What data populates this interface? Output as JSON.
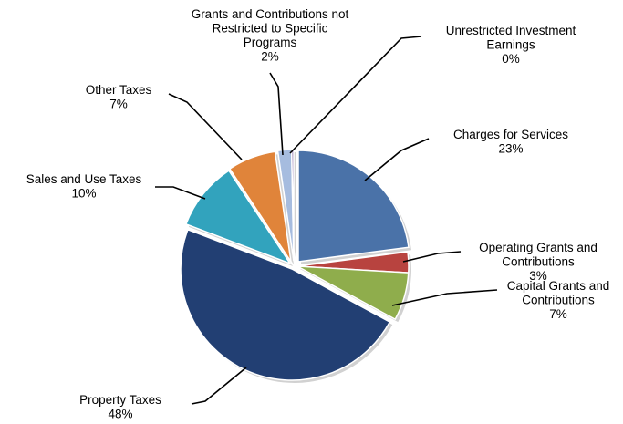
{
  "chart_data": {
    "type": "pie",
    "title": "",
    "legend": "none",
    "slices": [
      {
        "label_lines": [
          "Charges for Services"
        ],
        "percent_label": "23%",
        "value": 23,
        "color": "#4a72a8"
      },
      {
        "label_lines": [
          "Operating Grants and",
          "Contributions"
        ],
        "percent_label": "3%",
        "value": 3,
        "color": "#b8433f"
      },
      {
        "label_lines": [
          "Capital Grants and",
          "Contributions"
        ],
        "percent_label": "7%",
        "value": 7,
        "color": "#8fad4c"
      },
      {
        "label_lines": [
          "Property Taxes"
        ],
        "percent_label": "48%",
        "value": 48,
        "color": "#223f73"
      },
      {
        "label_lines": [
          "Sales and Use Taxes"
        ],
        "percent_label": "10%",
        "value": 10,
        "color": "#32a3bd"
      },
      {
        "label_lines": [
          "Other Taxes"
        ],
        "percent_label": "7%",
        "value": 7,
        "color": "#e0843a"
      },
      {
        "label_lines": [
          "Grants and Contributions not",
          "Restricted to Specific",
          "Programs"
        ],
        "percent_label": "2%",
        "value": 2,
        "color": "#a6bcdf"
      },
      {
        "label_lines": [
          "Unrestricted Investment",
          "Earnings"
        ],
        "percent_label": "0%",
        "value": 0.3,
        "color": "#8064a2"
      }
    ]
  }
}
